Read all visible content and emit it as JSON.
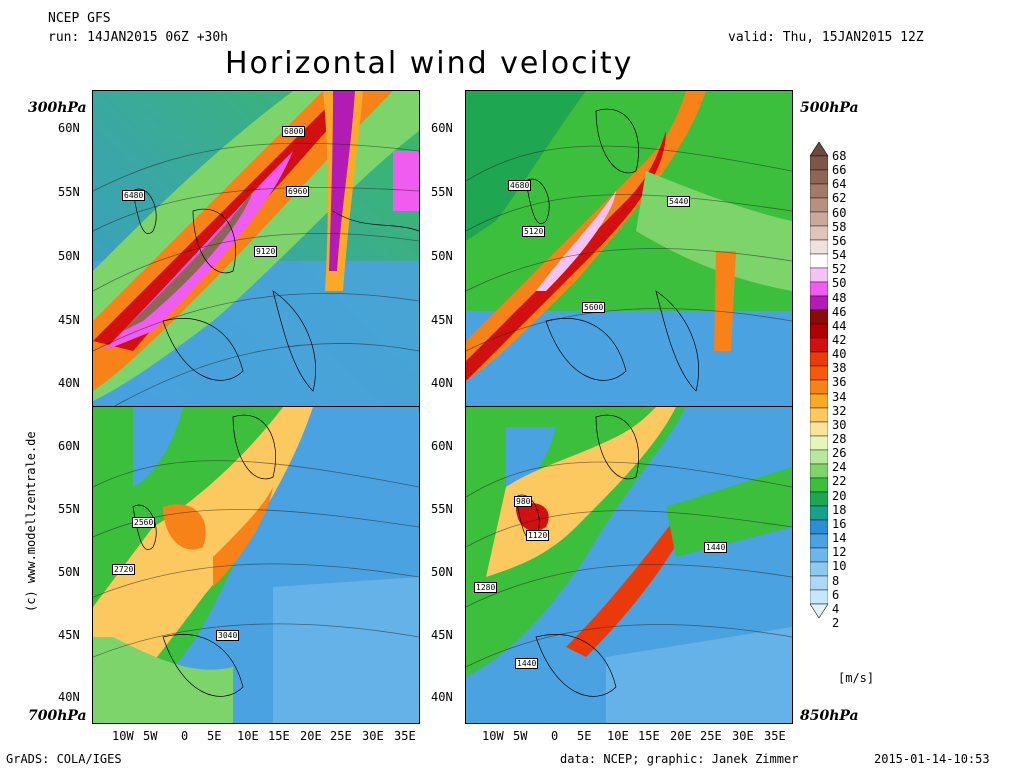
{
  "header": {
    "model": "NCEP GFS",
    "run": "run: 14JAN2015 06Z +30h",
    "valid": "valid: Thu, 15JAN2015 12Z",
    "title": "Horizontal wind velocity"
  },
  "panels": [
    {
      "level": "300hPa",
      "labels": [
        "6800",
        "6960",
        "6480",
        "9120"
      ]
    },
    {
      "level": "500hPa",
      "labels": [
        "4680",
        "5120",
        "5440",
        "5600"
      ]
    },
    {
      "level": "700hPa",
      "labels": [
        "2560",
        "2720",
        "3040"
      ]
    },
    {
      "level": "850hPa",
      "labels": [
        "980",
        "1120",
        "1440",
        "1280",
        "1440"
      ]
    }
  ],
  "axes": {
    "lat_labels": [
      "60N",
      "55N",
      "50N",
      "45N",
      "40N"
    ],
    "lon_labels": [
      "10W",
      "5W",
      "0",
      "5E",
      "10E",
      "15E",
      "20E",
      "25E",
      "30E",
      "35E"
    ]
  },
  "colorbar": {
    "unit": "[m/s]",
    "levels": [
      "68",
      "66",
      "64",
      "62",
      "60",
      "58",
      "56",
      "54",
      "52",
      "50",
      "48",
      "46",
      "44",
      "42",
      "40",
      "38",
      "36",
      "34",
      "32",
      "30",
      "28",
      "26",
      "24",
      "22",
      "20",
      "18",
      "16",
      "14",
      "12",
      "10",
      "8",
      "6",
      "4",
      "2"
    ],
    "colors": [
      "#6e4a3c",
      "#7d5646",
      "#8e6655",
      "#a27a6a",
      "#b8907f",
      "#caa89a",
      "#dec4b9",
      "#efe2dc",
      "#ffffff",
      "#f5c2f5",
      "#ef5cef",
      "#b41ab4",
      "#8a0a0a",
      "#b00000",
      "#d21010",
      "#ea3a0a",
      "#f45a0a",
      "#f78218",
      "#f9a828",
      "#fcc860",
      "#fde29a",
      "#e6f5b8",
      "#b8e8a0",
      "#7cd46a",
      "#3cbf3c",
      "#1ea650",
      "#19a08c",
      "#2c8fd6",
      "#4aa2e0",
      "#6bb6ea",
      "#8dc8f0",
      "#acd8f5",
      "#c7e6fa",
      "#e4f4fe"
    ]
  },
  "footer": {
    "left": "GrADS: COLA/IGES",
    "center": "data: NCEP; graphic: Janek Zimmer",
    "right": "2015-01-14-10:53"
  },
  "watermark": "(c) www.modellzentrale.de"
}
